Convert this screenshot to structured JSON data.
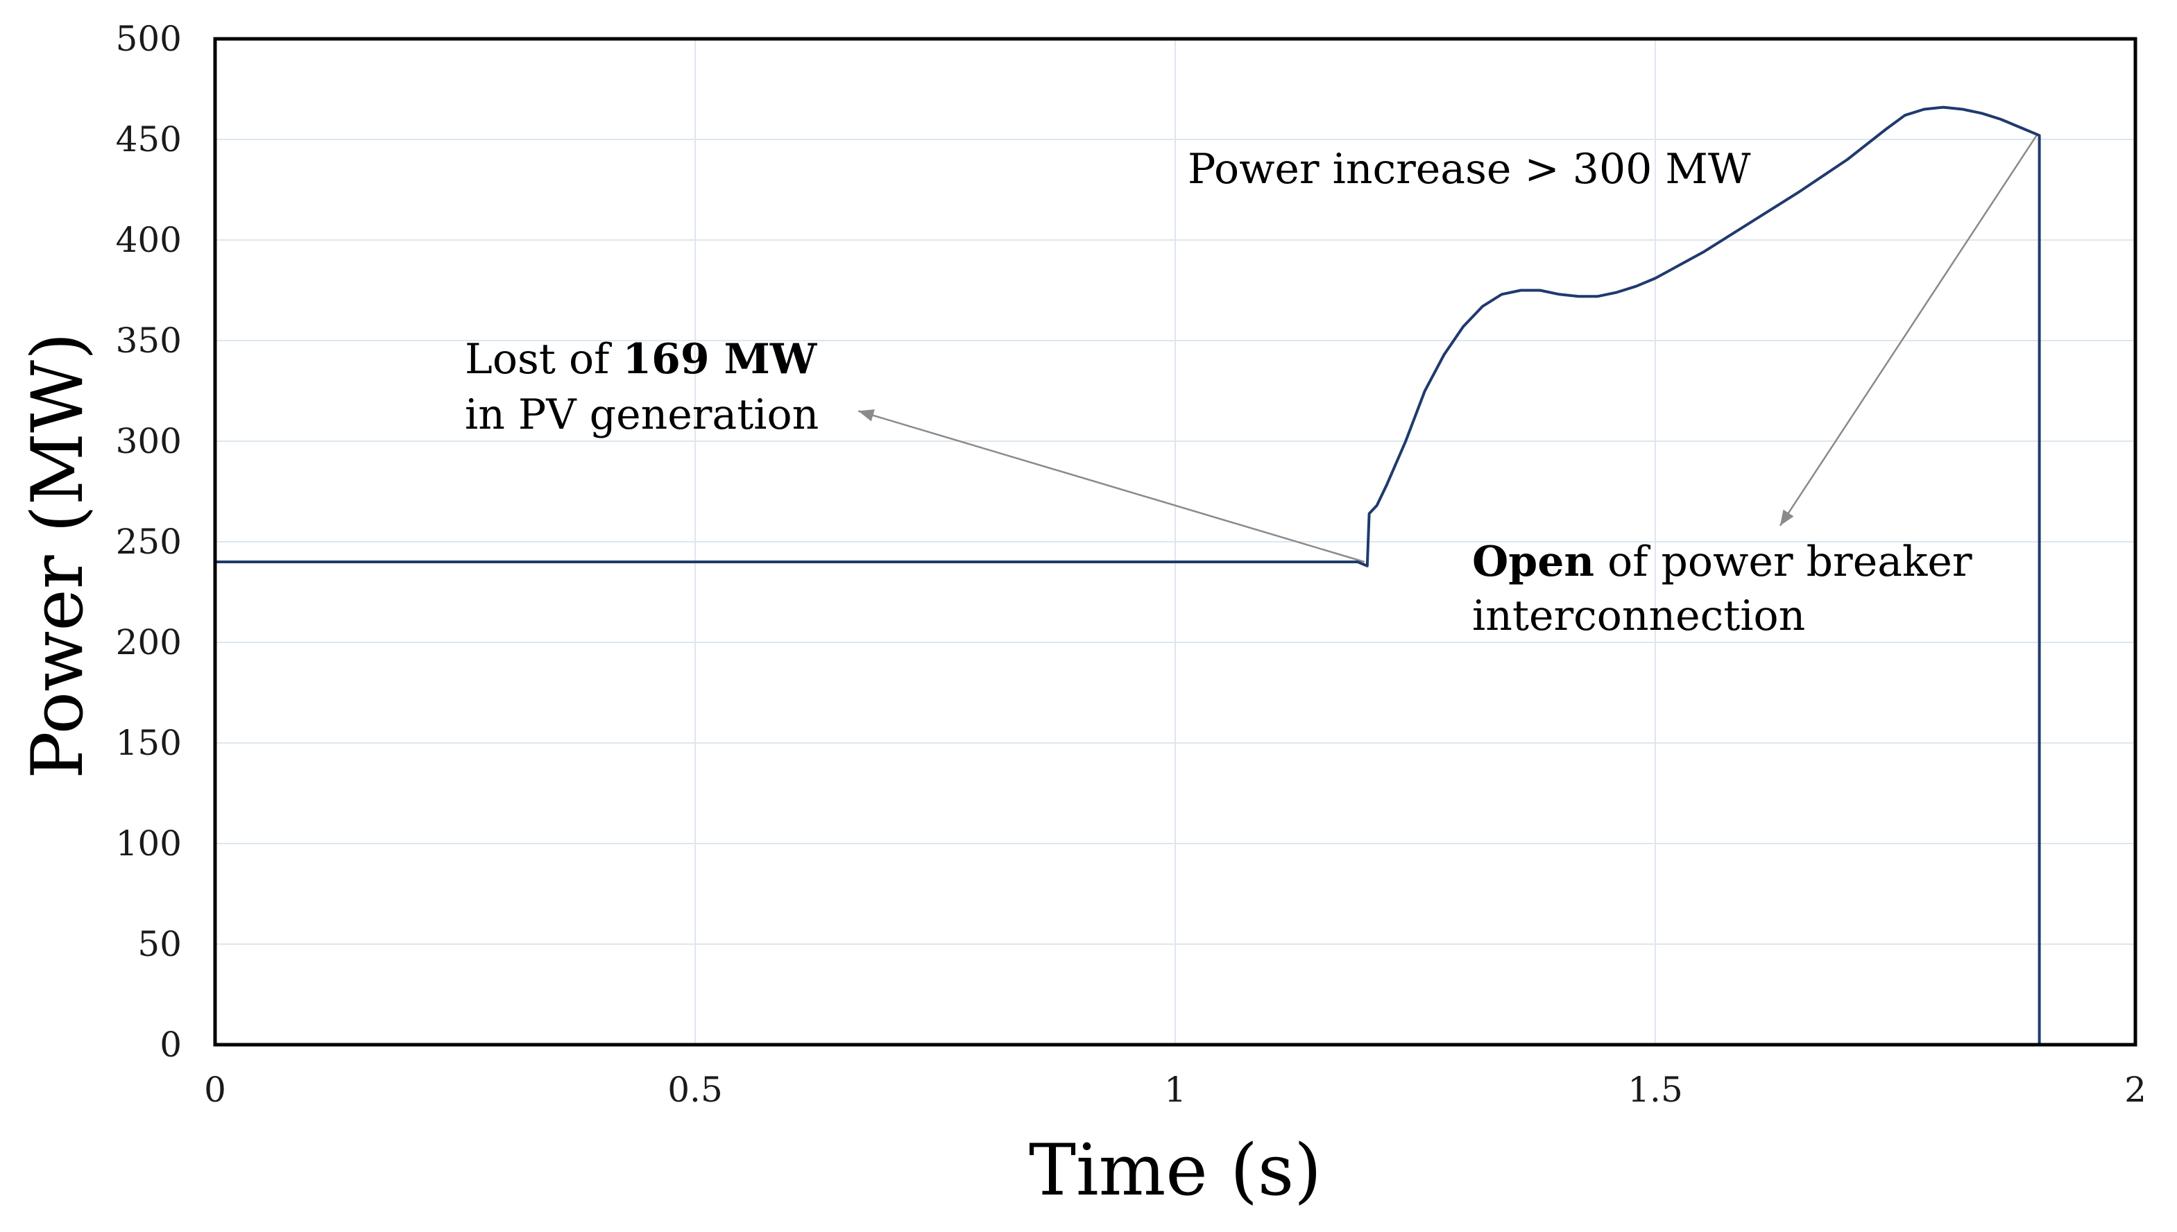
{
  "chart_data": {
    "type": "line",
    "title": "",
    "xlabel": "Time (s)",
    "ylabel": "Power (MW)",
    "xlim": [
      0,
      2
    ],
    "ylim": [
      0,
      500
    ],
    "x_ticks": [
      0,
      0.5,
      1,
      1.5,
      2
    ],
    "y_ticks": [
      0,
      50,
      100,
      150,
      200,
      250,
      300,
      350,
      400,
      450,
      500
    ],
    "x_tick_labels": [
      "0",
      "0.5",
      "1",
      "1.5",
      "2"
    ],
    "y_tick_labels": [
      "0",
      "50",
      "100",
      "150",
      "200",
      "250",
      "300",
      "350",
      "400",
      "450",
      "500"
    ],
    "grid": true,
    "series": [
      {
        "name": "Power",
        "color": "#1f3a6e",
        "points": [
          [
            0.0,
            240
          ],
          [
            0.5,
            240
          ],
          [
            1.0,
            240
          ],
          [
            1.19,
            240
          ],
          [
            1.2,
            238
          ],
          [
            1.202,
            264
          ],
          [
            1.21,
            268
          ],
          [
            1.22,
            278
          ],
          [
            1.24,
            300
          ],
          [
            1.26,
            325
          ],
          [
            1.28,
            343
          ],
          [
            1.3,
            357
          ],
          [
            1.32,
            367
          ],
          [
            1.34,
            373
          ],
          [
            1.36,
            375
          ],
          [
            1.38,
            375
          ],
          [
            1.4,
            373
          ],
          [
            1.42,
            372
          ],
          [
            1.44,
            372
          ],
          [
            1.46,
            374
          ],
          [
            1.48,
            377
          ],
          [
            1.5,
            381
          ],
          [
            1.55,
            394
          ],
          [
            1.6,
            409
          ],
          [
            1.65,
            424
          ],
          [
            1.7,
            440
          ],
          [
            1.74,
            455
          ],
          [
            1.76,
            462
          ],
          [
            1.78,
            465
          ],
          [
            1.8,
            466
          ],
          [
            1.82,
            465
          ],
          [
            1.84,
            463
          ],
          [
            1.86,
            460
          ],
          [
            1.88,
            456
          ],
          [
            1.9,
            452
          ],
          [
            1.9,
            0
          ],
          [
            2.0,
            0
          ]
        ]
      }
    ],
    "annotations": [
      {
        "id": "lost",
        "lines": [
          [
            {
              "text": "Lost of ",
              "bold": false
            },
            {
              "text": "169 MW",
              "bold": true
            }
          ],
          [
            {
              "text": "in PV generation",
              "bold": false
            }
          ]
        ],
        "anchor_point": [
          1.2,
          240
        ],
        "arrow_target": [
          0.67,
          315
        ]
      },
      {
        "id": "increase",
        "lines": [
          [
            {
              "text": "Power increase > 300 MW",
              "bold": false
            }
          ]
        ]
      },
      {
        "id": "open",
        "lines": [
          [
            {
              "text": "Open",
              "bold": true
            },
            {
              "text": " of power breaker",
              "bold": false
            }
          ],
          [
            {
              "text": "interconnection",
              "bold": false
            }
          ]
        ],
        "anchor_point": [
          1.9,
          452
        ],
        "arrow_target": [
          1.63,
          258
        ]
      }
    ],
    "colors": {
      "line": "#1f3a6e",
      "grid": "#dce7f0",
      "axis": "#000000",
      "arrow": "#8a8a8a"
    }
  }
}
